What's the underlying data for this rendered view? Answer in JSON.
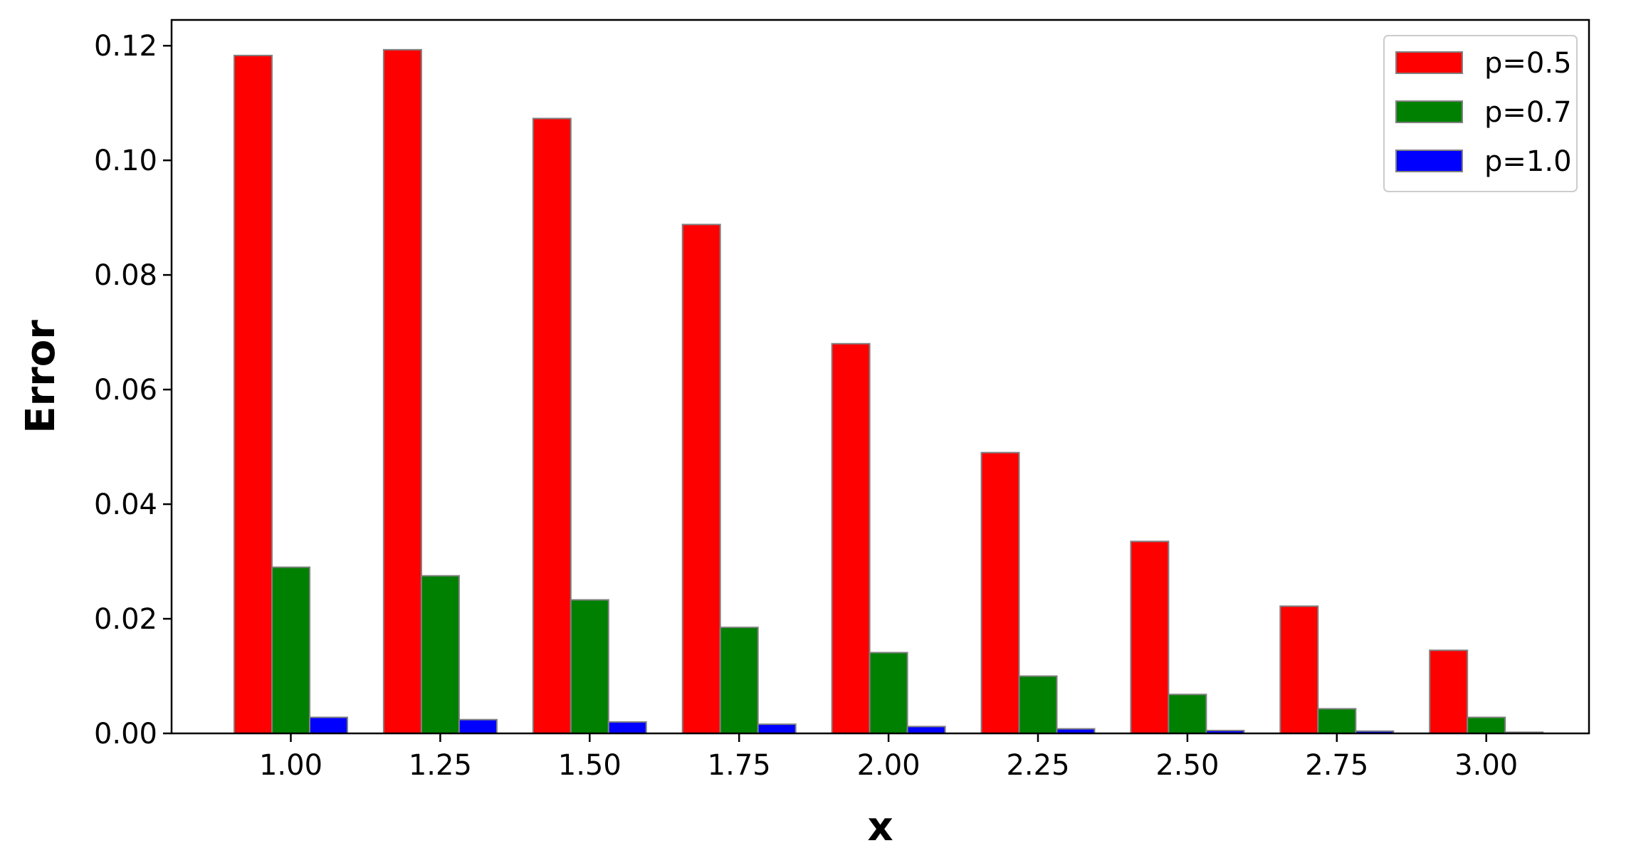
{
  "chart_data": {
    "type": "bar",
    "title": "",
    "xlabel": "x",
    "ylabel": "Error",
    "categories": [
      "1.00",
      "1.25",
      "1.50",
      "1.75",
      "2.00",
      "2.25",
      "2.50",
      "2.75",
      "3.00"
    ],
    "series": [
      {
        "name": "p=0.5",
        "color": "#ff0000",
        "values": [
          0.1183,
          0.1193,
          0.1073,
          0.0888,
          0.068,
          0.049,
          0.0335,
          0.0222,
          0.0145
        ]
      },
      {
        "name": "p=0.7",
        "color": "#008000",
        "values": [
          0.029,
          0.0275,
          0.0233,
          0.0185,
          0.0141,
          0.01,
          0.0068,
          0.0043,
          0.0028
        ]
      },
      {
        "name": "p=1.0",
        "color": "#0000ff",
        "values": [
          0.0028,
          0.0024,
          0.002,
          0.0016,
          0.0012,
          0.0008,
          0.0005,
          0.0004,
          0.0002
        ]
      }
    ],
    "yticks": [
      "0.00",
      "0.02",
      "0.04",
      "0.06",
      "0.08",
      "0.10",
      "0.12"
    ],
    "ylim": [
      0,
      0.1245
    ],
    "legend_position": "top-right",
    "grid": false
  }
}
